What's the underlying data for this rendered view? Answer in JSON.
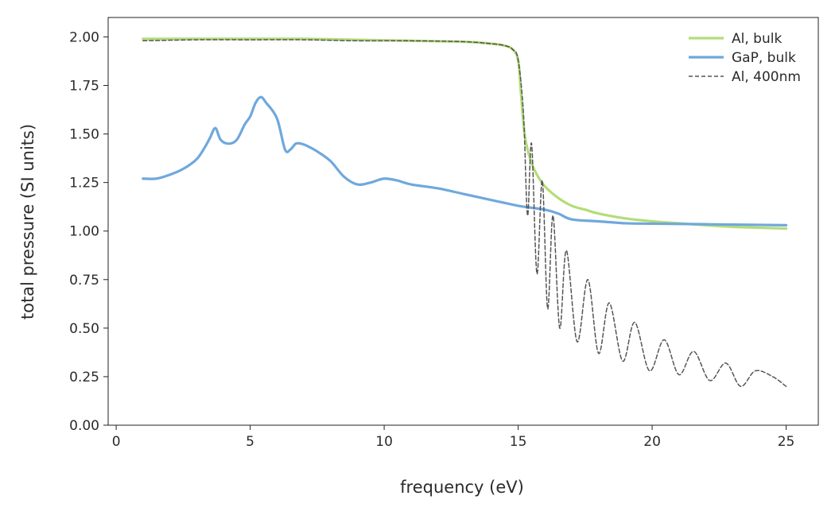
{
  "chart_data": {
    "type": "line",
    "title": "",
    "xlabel": "frequency (eV)",
    "ylabel": "total pressure (SI units)",
    "xlim": [
      -0.3,
      26.2
    ],
    "ylim": [
      0.0,
      2.1
    ],
    "x_ticks": [
      0,
      5,
      10,
      15,
      20,
      25
    ],
    "x_tick_labels": [
      "0",
      "5",
      "10",
      "15",
      "20",
      "25"
    ],
    "y_ticks": [
      0.0,
      0.25,
      0.5,
      0.75,
      1.0,
      1.25,
      1.5,
      1.75,
      2.0
    ],
    "y_tick_labels": [
      "0.00",
      "0.25",
      "0.50",
      "0.75",
      "1.00",
      "1.25",
      "1.50",
      "1.75",
      "2.00"
    ],
    "grid": false,
    "legend_position": "top-right",
    "series": [
      {
        "name": "Al, bulk",
        "color": "#b4dc78",
        "style": "solid",
        "x": [
          1,
          3,
          5,
          7,
          9,
          11,
          13,
          14,
          14.5,
          14.8,
          15.0,
          15.1,
          15.2,
          15.3,
          15.5,
          15.7,
          16.0,
          16.5,
          17.0,
          17.5,
          18.0,
          19.0,
          20.0,
          21.0,
          22.0,
          23.0,
          24.0,
          25.0
        ],
        "values": [
          1.99,
          1.99,
          1.99,
          1.99,
          1.985,
          1.98,
          1.975,
          1.965,
          1.955,
          1.935,
          1.88,
          1.72,
          1.55,
          1.45,
          1.35,
          1.29,
          1.23,
          1.17,
          1.13,
          1.11,
          1.09,
          1.065,
          1.05,
          1.04,
          1.03,
          1.022,
          1.017,
          1.013
        ]
      },
      {
        "name": "GaP, bulk",
        "color": "#6fa8dc",
        "style": "solid",
        "x": [
          1,
          1.5,
          2,
          2.5,
          3,
          3.3,
          3.5,
          3.7,
          3.9,
          4.2,
          4.5,
          4.8,
          5.0,
          5.2,
          5.4,
          5.6,
          6.0,
          6.3,
          6.5,
          6.7,
          6.9,
          7.1,
          7.5,
          8.0,
          8.5,
          9.0,
          9.5,
          10.0,
          10.5,
          11.0,
          12.0,
          13.0,
          14.0,
          15.0,
          15.5,
          16.0,
          16.5,
          17.0,
          18.0,
          19.0,
          20.0,
          22.0,
          25.0
        ],
        "values": [
          1.27,
          1.27,
          1.29,
          1.32,
          1.37,
          1.43,
          1.48,
          1.53,
          1.47,
          1.45,
          1.47,
          1.55,
          1.59,
          1.66,
          1.69,
          1.66,
          1.58,
          1.42,
          1.42,
          1.45,
          1.45,
          1.44,
          1.41,
          1.36,
          1.28,
          1.24,
          1.25,
          1.27,
          1.26,
          1.24,
          1.22,
          1.19,
          1.16,
          1.13,
          1.12,
          1.11,
          1.09,
          1.06,
          1.05,
          1.04,
          1.038,
          1.035,
          1.03
        ]
      },
      {
        "name": "Al, 400nm",
        "color": "#555555",
        "style": "dashed",
        "x": [
          1,
          3,
          5,
          7,
          9,
          11,
          13,
          14,
          14.5,
          14.8,
          15.0,
          15.2,
          15.35,
          15.5,
          15.7,
          15.9,
          16.1,
          16.3,
          16.55,
          16.8,
          17.2,
          17.6,
          18.0,
          18.4,
          18.9,
          19.35,
          19.9,
          20.45,
          21.0,
          21.55,
          22.15,
          22.75,
          23.3,
          23.85,
          24.5,
          25.0
        ],
        "values": [
          1.98,
          1.985,
          1.985,
          1.985,
          1.98,
          1.98,
          1.975,
          1.965,
          1.955,
          1.935,
          1.88,
          1.6,
          1.08,
          1.45,
          0.78,
          1.26,
          0.6,
          1.08,
          0.5,
          0.9,
          0.43,
          0.75,
          0.37,
          0.63,
          0.33,
          0.53,
          0.28,
          0.44,
          0.26,
          0.38,
          0.23,
          0.32,
          0.2,
          0.28,
          0.25,
          0.2
        ]
      }
    ]
  }
}
